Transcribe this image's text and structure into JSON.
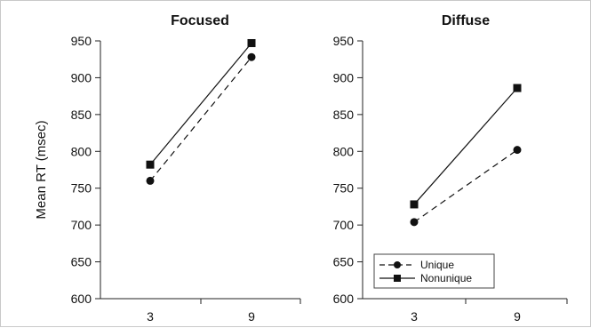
{
  "chart_data": [
    {
      "type": "line",
      "title": "Focused",
      "xlabel": "",
      "ylabel": "Mean RT (msec)",
      "categories": [
        "3",
        "9"
      ],
      "ylim": [
        600,
        950
      ],
      "yticks": [
        600,
        650,
        700,
        750,
        800,
        850,
        900,
        950
      ],
      "series": [
        {
          "name": "Unique",
          "values": [
            760,
            928
          ],
          "line_style": "dashed",
          "marker": "circle",
          "color": "#111111"
        },
        {
          "name": "Nonunique",
          "values": [
            782,
            947
          ],
          "line_style": "solid",
          "marker": "square",
          "color": "#111111"
        }
      ],
      "legend": null,
      "grid": false
    },
    {
      "type": "line",
      "title": "Diffuse",
      "xlabel": "",
      "ylabel": "",
      "categories": [
        "3",
        "9"
      ],
      "ylim": [
        600,
        950
      ],
      "yticks": [
        600,
        650,
        700,
        750,
        800,
        850,
        900,
        950
      ],
      "series": [
        {
          "name": "Unique",
          "values": [
            704,
            802
          ],
          "line_style": "dashed",
          "marker": "circle",
          "color": "#111111"
        },
        {
          "name": "Nonunique",
          "values": [
            728,
            886
          ],
          "line_style": "solid",
          "marker": "square",
          "color": "#111111"
        }
      ],
      "legend": "bottom-left",
      "grid": false
    }
  ]
}
